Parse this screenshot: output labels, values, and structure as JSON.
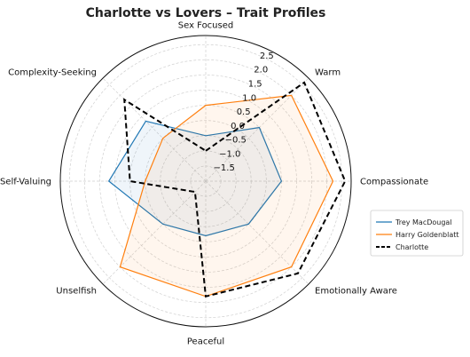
{
  "chart_data": {
    "type": "radar",
    "title": "Charlotte vs Lovers – Trait Profiles",
    "axes": [
      "Sex Focused",
      "Warm",
      "Compassionate",
      "Emotionally Aware",
      "Peaceful",
      "Unselfish",
      "Self-Valuing",
      "Complexity-Seeking"
    ],
    "radial_ticks": [
      "−1.5",
      "−1.0",
      "−0.5",
      "0.0",
      "0.5",
      "1.0",
      "1.5",
      "2.0",
      "2.5"
    ],
    "radial_tick_values": [
      -1.5,
      -1.0,
      -0.5,
      0.0,
      0.5,
      1.0,
      1.5,
      2.0,
      2.5
    ],
    "rlim": [
      -2.0,
      2.8
    ],
    "grid": true,
    "legend_position": "right",
    "series": [
      {
        "name": "Trey MacDougal",
        "color": "#1f77b4",
        "style": "solid",
        "fill": true,
        "values": [
          -0.5,
          0.5,
          0.5,
          0.0,
          -0.2,
          0.0,
          1.2,
          0.8
        ]
      },
      {
        "name": "Harry Goldenblatt",
        "color": "#ff7f0e",
        "style": "solid",
        "fill": true,
        "values": [
          0.5,
          2.0,
          2.2,
          2.0,
          1.8,
          2.0,
          0.0,
          0.0
        ]
      },
      {
        "name": "Charlotte",
        "color": "#000000",
        "style": "dashed",
        "fill": false,
        "values": [
          -1.0,
          2.6,
          2.6,
          2.3,
          1.8,
          -1.5,
          0.5,
          1.8
        ]
      }
    ]
  }
}
